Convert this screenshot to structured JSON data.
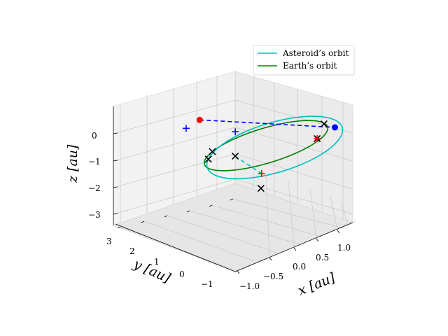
{
  "chart_data": {
    "type": "scatter",
    "projection": "3d",
    "title": "",
    "xlabel": "$x$ [au]",
    "ylabel": "$y$ [au]",
    "zlabel": "$z$ [au]",
    "xlim": [
      -1.3,
      1.45
    ],
    "ylim": [
      -1.6,
      3.3
    ],
    "zlim": [
      -3.4,
      1.1
    ],
    "xticks": [
      "−1.0",
      "−0.5",
      "0.0",
      "0.5",
      "1.0"
    ],
    "yticks": [
      "−1",
      "0",
      "1",
      "2",
      "3"
    ],
    "zticks": [
      "−3",
      "−2",
      "−1",
      "0"
    ],
    "legend_position": "top-right",
    "series": [
      {
        "name": "Asteroid’s orbit",
        "kind": "line",
        "color": "#00bfbf"
      },
      {
        "name": "Earth’s orbit",
        "kind": "line",
        "color": "#008000"
      }
    ],
    "orbits": {
      "earth": {
        "radius": 1.0,
        "center": [
          0,
          0,
          0
        ]
      },
      "asteroid": {
        "center": [
          0.5,
          0.8,
          -0.8
        ],
        "u": [
          0.65,
          0.15,
          0.55
        ],
        "v": [
          -0.05,
          2.3,
          -0.9
        ]
      }
    },
    "markers": {
      "red_dot": [
        0.04,
        2.8,
        -0.1
      ],
      "blue_dot": [
        1.0,
        -0.5,
        0.0
      ],
      "blue_plus": [
        [
          -0.35,
          2.45,
          0.05
        ],
        [
          0.15,
          1.6,
          -0.2
        ]
      ],
      "red_plus": [
        [
          0.6,
          -0.7,
          0.0
        ],
        [
          0.57,
          1.5,
          -2.1
        ]
      ],
      "black_x": [
        [
          -0.8,
          0.5,
          0.0
        ],
        [
          -0.6,
          0.8,
          0.0
        ],
        [
          -0.5,
          0.1,
          0.0
        ],
        [
          0.6,
          -0.7,
          0.0
        ],
        [
          0.98,
          -0.1,
          0.0
        ],
        [
          0.3,
          0.9,
          -2.2
        ]
      ],
      "blue_dashed": [
        [
          0.04,
          2.8,
          -0.1
        ],
        [
          1.0,
          -0.5,
          0.0
        ]
      ],
      "cyan_dashed": [
        [
          -0.5,
          0.1,
          0.0
        ],
        [
          0.57,
          1.5,
          -2.1
        ]
      ]
    }
  },
  "legend": {
    "asteroid_label": "Asteroid’s orbit",
    "earth_label": "Earth’s orbit"
  },
  "axes": {
    "x_label": "x [au]",
    "y_label": "y [au]",
    "z_label": "z [au]"
  }
}
